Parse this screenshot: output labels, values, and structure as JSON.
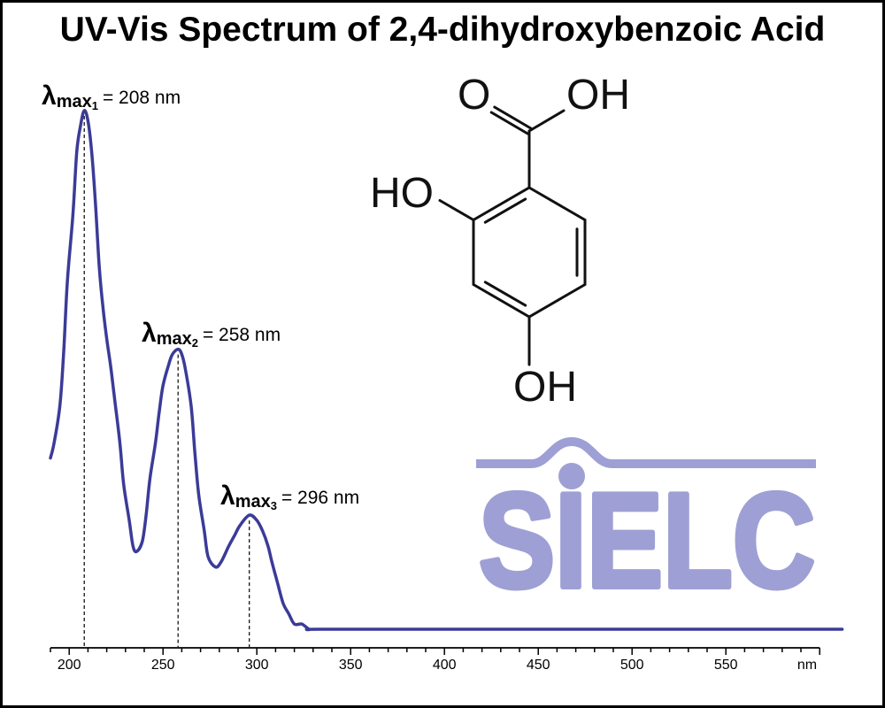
{
  "colors": {
    "spectrum": "#3b3b98",
    "logo": "#9e9fd4",
    "axis": "#000000",
    "border": "#000000"
  },
  "chart_data": {
    "type": "line",
    "title": "UV-Vis Spectrum of 2,4-dihydroxybenzoic Acid",
    "xlabel": "nm",
    "xlim": [
      190,
      600
    ],
    "ylim": [
      0,
      1
    ],
    "y_axis_visible": false,
    "grid": false,
    "legend": false,
    "x_ticks": [
      200,
      250,
      300,
      350,
      400,
      450,
      500,
      550
    ],
    "x_tick_labels": [
      "200",
      "250",
      "300",
      "350",
      "400",
      "450",
      "500",
      "550"
    ],
    "series": [
      {
        "x": [
          190,
          192,
          195,
          197,
          199,
          202,
          204,
          206,
          208,
          210,
          212,
          214,
          216,
          218,
          220,
          222,
          224,
          227,
          229,
          232,
          234,
          236,
          239,
          241,
          243,
          246,
          248,
          250,
          253,
          255,
          258,
          260,
          262,
          265,
          267,
          269,
          272,
          274,
          278,
          281,
          285,
          288,
          291,
          296,
          300,
          303,
          306,
          308,
          311,
          314,
          317,
          320,
          324,
          328,
          333,
          400,
          500,
          612
        ],
        "y": [
          0.33,
          0.36,
          0.43,
          0.53,
          0.67,
          0.8,
          0.92,
          0.97,
          1.0,
          0.98,
          0.92,
          0.82,
          0.7,
          0.62,
          0.56,
          0.51,
          0.45,
          0.36,
          0.28,
          0.21,
          0.16,
          0.15,
          0.17,
          0.22,
          0.29,
          0.36,
          0.42,
          0.47,
          0.51,
          0.53,
          0.54,
          0.53,
          0.5,
          0.43,
          0.34,
          0.26,
          0.19,
          0.14,
          0.12,
          0.13,
          0.16,
          0.18,
          0.2,
          0.22,
          0.21,
          0.19,
          0.16,
          0.13,
          0.09,
          0.05,
          0.03,
          0.01,
          0.01,
          0.0,
          0.0,
          0.0,
          0.0,
          0.0
        ]
      }
    ],
    "peaks": [
      {
        "x": 208,
        "y": 1.0,
        "symbol": "λ",
        "subscript": "max",
        "index": "1",
        "label": "= 208 nm"
      },
      {
        "x": 258,
        "y": 0.54,
        "symbol": "λ",
        "subscript": "max",
        "index": "2",
        "label": "= 258 nm"
      },
      {
        "x": 296,
        "y": 0.22,
        "symbol": "λ",
        "subscript": "max",
        "index": "3",
        "label": "= 296 nm"
      }
    ]
  },
  "structure": {
    "carbonyl_oxygen": "O",
    "carboxyl_hydroxyl": "OH",
    "ortho_hydroxyl": "HO",
    "para_hydroxyl": "OH"
  },
  "logo": {
    "text": "SIELC"
  }
}
